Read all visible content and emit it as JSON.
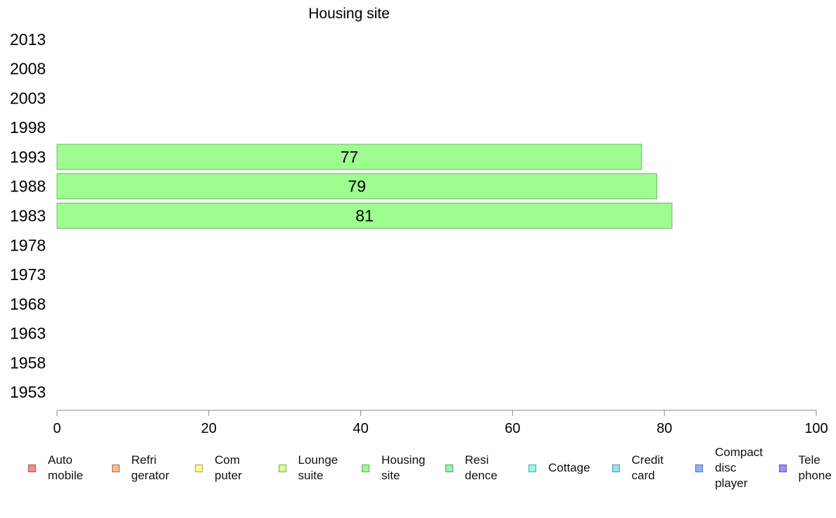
{
  "chart_data": {
    "type": "bar",
    "orientation": "horizontal",
    "title": "Housing site",
    "categories": [
      "2013",
      "2008",
      "2003",
      "1998",
      "1993",
      "1988",
      "1983",
      "1978",
      "1973",
      "1968",
      "1963",
      "1958",
      "1953"
    ],
    "series": [
      {
        "name": "Housing site",
        "color": "#9dfd8f",
        "values": [
          null,
          null,
          null,
          null,
          77,
          79,
          81,
          null,
          null,
          null,
          null,
          null,
          null
        ]
      }
    ],
    "xlim": [
      0,
      100
    ],
    "xticks": [
      "0",
      "20",
      "40",
      "60",
      "80",
      "100"
    ],
    "grid": false,
    "legend_position": "bottom"
  },
  "legend": {
    "items": [
      {
        "label": "Auto\nmobile",
        "color": "#f98b88"
      },
      {
        "label": "Refri\ngerator",
        "color": "#fbb98a"
      },
      {
        "label": "Com\nputer",
        "color": "#fdfb8b"
      },
      {
        "label": "Lounge\nsuite",
        "color": "#dcfb8b"
      },
      {
        "label": "Housing\nsite",
        "color": "#9dfd8f"
      },
      {
        "label": "Resi\ndence",
        "color": "#8ff6a8"
      },
      {
        "label": "Cottage",
        "color": "#90fde5"
      },
      {
        "label": "Credit\ncard",
        "color": "#8ee7fd"
      },
      {
        "label": "Compact\ndisc\nplayer",
        "color": "#8cb1fb"
      },
      {
        "label": "Tele\nphone",
        "color": "#9b8ffb"
      }
    ]
  }
}
